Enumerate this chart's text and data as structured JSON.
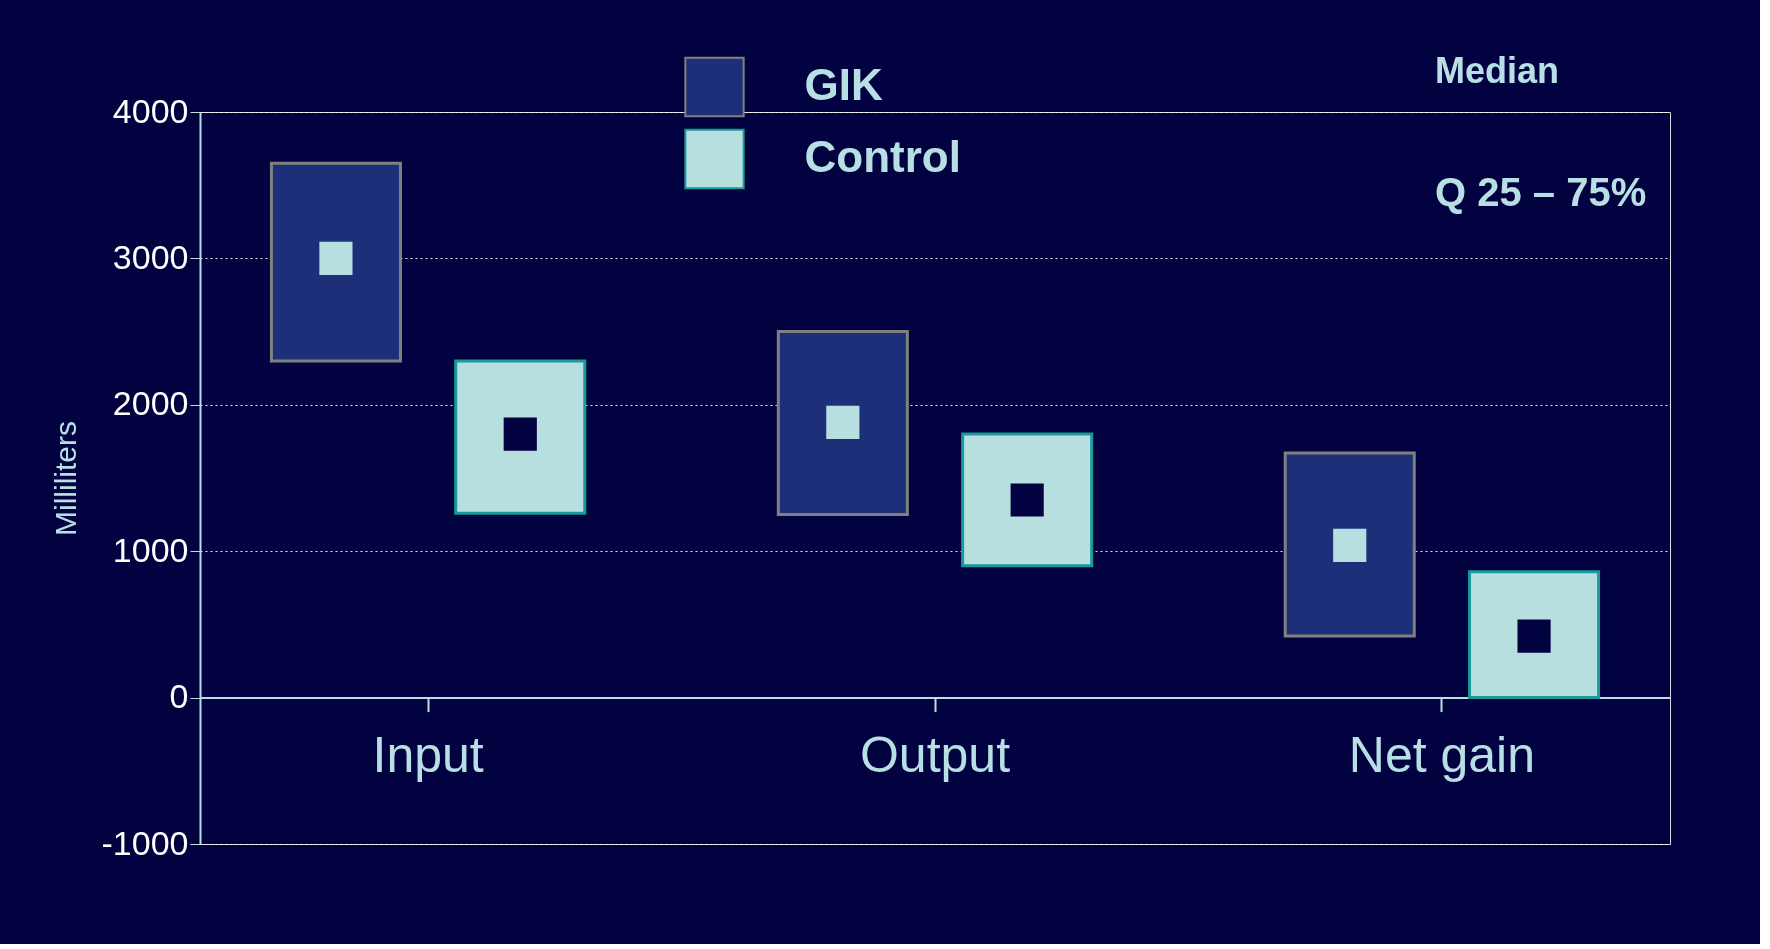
{
  "chart_data": {
    "type": "box",
    "ylabel": "Milliliters",
    "categories": [
      "Input",
      "Output",
      "Net gain"
    ],
    "series": [
      {
        "name": "GIK",
        "color": "#1e2f7a",
        "boxes": [
          {
            "low": 2300,
            "q1": 2300,
            "median": 3000,
            "q3": 3650,
            "high": 3650
          },
          {
            "low": 1250,
            "q1": 1250,
            "median": 1880,
            "q3": 2500,
            "high": 2500
          },
          {
            "low": 420,
            "q1": 420,
            "median": 1040,
            "q3": 1670,
            "high": 1670
          }
        ]
      },
      {
        "name": "Control",
        "color": "#b8dfe0",
        "boxes": [
          {
            "low": 1260,
            "q1": 1260,
            "median": 1800,
            "q3": 2300,
            "high": 2300
          },
          {
            "low": 900,
            "q1": 900,
            "median": 1350,
            "q3": 1800,
            "high": 1800
          },
          {
            "low": 0,
            "q1": 0,
            "median": 420,
            "q3": 860,
            "high": 860
          }
        ]
      }
    ],
    "ylim": [
      -1000,
      4000
    ],
    "yticks": [
      -1000,
      0,
      1000,
      2000,
      3000,
      4000
    ],
    "grid": "y",
    "legend": "top",
    "annotations": [
      "Median",
      "Q 25 – 75%"
    ]
  }
}
